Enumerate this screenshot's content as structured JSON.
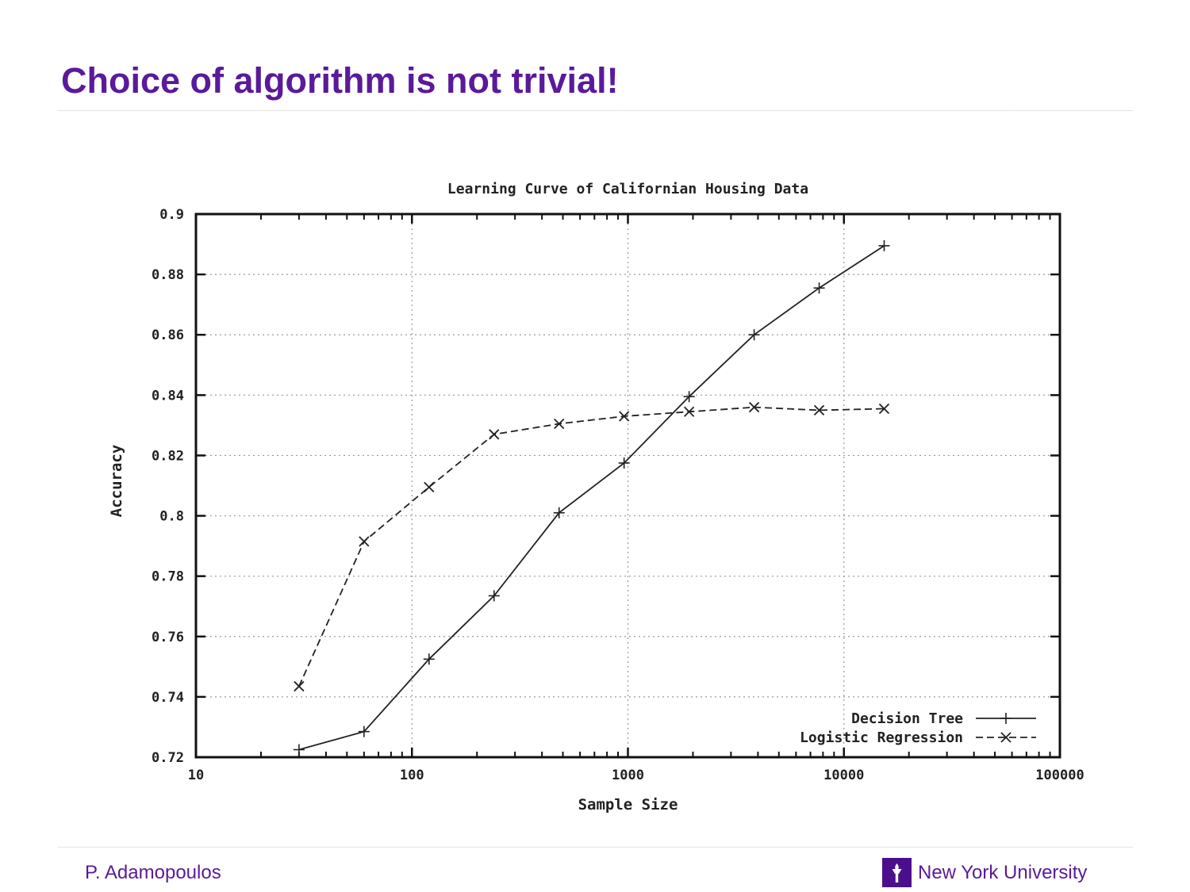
{
  "slide": {
    "title": "Choice of algorithm is not trivial!",
    "footer_author": "P. Adamopoulos",
    "footer_university": "New York University",
    "logo_icon": "nyu-torch-icon",
    "colors": {
      "accent": "#4b0f8c",
      "title": "#5a1a9a",
      "footer_text": "#5a1a9a"
    }
  },
  "chart_data": {
    "type": "line",
    "title": "Learning Curve of Californian Housing Data",
    "xlabel": "Sample Size",
    "ylabel": "Accuracy",
    "xscale": "log",
    "xlim": [
      10,
      100000
    ],
    "ylim": [
      0.72,
      0.9
    ],
    "x_ticks": [
      10,
      100,
      1000,
      10000,
      100000
    ],
    "x_tick_labels": [
      "10",
      "100",
      "1000",
      "10000",
      "100000"
    ],
    "y_ticks": [
      0.72,
      0.74,
      0.76,
      0.78,
      0.8,
      0.82,
      0.84,
      0.86,
      0.88,
      0.9
    ],
    "y_tick_labels": [
      "0.72",
      "0.74",
      "0.76",
      "0.78",
      "0.8",
      "0.82",
      "0.84",
      "0.86",
      "0.88",
      "0.9"
    ],
    "grid": true,
    "legend": "bottom-right",
    "series": [
      {
        "name": "Decision Tree",
        "line": "solid",
        "marker": "plus",
        "x": [
          30,
          60,
          120,
          240,
          480,
          960,
          1920,
          3840,
          7680,
          15360
        ],
        "y": [
          0.7225,
          0.7285,
          0.7525,
          0.7735,
          0.801,
          0.8175,
          0.8395,
          0.86,
          0.8755,
          0.8895
        ]
      },
      {
        "name": "Logistic Regression",
        "line": "dashed",
        "marker": "cross",
        "x": [
          30,
          60,
          120,
          240,
          480,
          960,
          1920,
          3840,
          7680,
          15360
        ],
        "y": [
          0.7435,
          0.7915,
          0.8095,
          0.827,
          0.8305,
          0.833,
          0.8345,
          0.836,
          0.835,
          0.8355
        ]
      }
    ]
  }
}
